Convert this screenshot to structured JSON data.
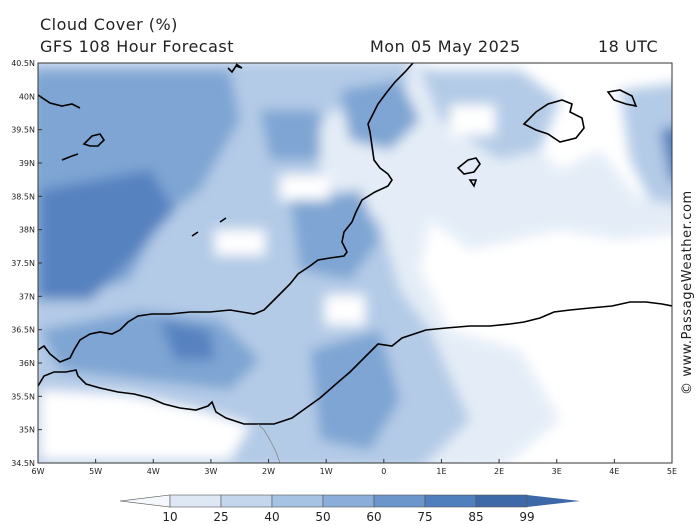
{
  "header": {
    "title": "Cloud Cover (%)",
    "subtitle": "GFS 108 Hour Forecast",
    "date": "Mon 05 May 2025",
    "time": "18 UTC"
  },
  "copyright": "© www.PassageWeather.com",
  "axes": {
    "lat_labels": [
      "40.5N",
      "40N",
      "39.5N",
      "39N",
      "38.5N",
      "38N",
      "37.5N",
      "37N",
      "36.5N",
      "36N",
      "35.5N",
      "35N",
      "34.5N"
    ],
    "lon_labels": [
      "6W",
      "5W",
      "4W",
      "3W",
      "2W",
      "1W",
      "0",
      "1E",
      "2E",
      "3E",
      "4E",
      "5E"
    ]
  },
  "colorbar": {
    "labels": [
      "10",
      "25",
      "40",
      "50",
      "60",
      "75",
      "85",
      "99"
    ],
    "colors": [
      "#f4f8fc",
      "#dde8f4",
      "#c3d6ec",
      "#a7c3e3",
      "#8aaed9",
      "#6b96cc",
      "#4f7fbd",
      "#3d69a8"
    ]
  },
  "field_colors": {
    "clear": "#ffffff",
    "light": "#e4edf7",
    "medium": "#b4cbe7",
    "heavy": "#7ea5d3",
    "dense": "#5682c0",
    "overcast": "#3d65a2"
  },
  "coast_color": "#000000"
}
